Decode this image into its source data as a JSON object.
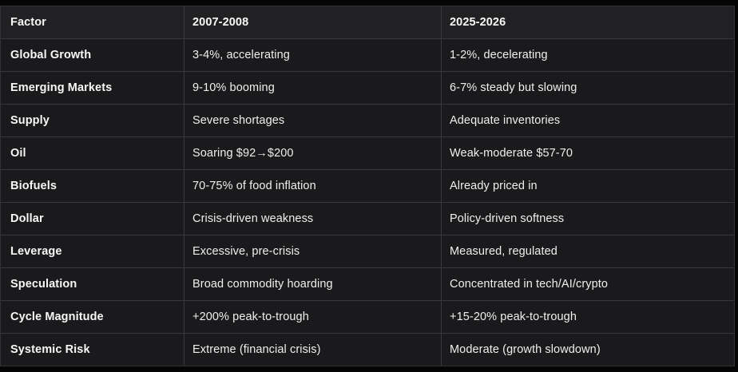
{
  "table": {
    "columns": [
      "Factor",
      "2007-2008",
      "2025-2026"
    ],
    "rows": [
      {
        "factor": "Global Growth",
        "col2007": "3-4%, accelerating",
        "col2025": "1-2%, decelerating"
      },
      {
        "factor": "Emerging Markets",
        "col2007": "9-10% booming",
        "col2025": "6-7% steady but slowing"
      },
      {
        "factor": "Supply",
        "col2007": "Severe shortages",
        "col2025": "Adequate inventories"
      },
      {
        "factor": "Oil",
        "col2007": "Soaring $92→$200",
        "col2025": "Weak-moderate $57-70"
      },
      {
        "factor": "Biofuels",
        "col2007": "70-75% of food inflation",
        "col2025": "Already priced in"
      },
      {
        "factor": "Dollar",
        "col2007": "Crisis-driven weakness",
        "col2025": "Policy-driven softness"
      },
      {
        "factor": "Leverage",
        "col2007": "Excessive, pre-crisis",
        "col2025": "Measured, regulated"
      },
      {
        "factor": "Speculation",
        "col2007": "Broad commodity hoarding",
        "col2025": "Concentrated in tech/AI/crypto"
      },
      {
        "factor": "Cycle Magnitude",
        "col2007": "+200% peak-to-trough",
        "col2025": "+15-20% peak-to-trough"
      },
      {
        "factor": "Systemic Risk",
        "col2007": "Extreme (financial crisis)",
        "col2025": "Moderate (growth slowdown)"
      }
    ]
  },
  "colors": {
    "page_background": "#050505",
    "header_background": "#212123",
    "row_background": "#1a1a1c",
    "border": "#39393b",
    "text_primary": "#f7f7f5",
    "text_secondary": "#efefed"
  }
}
